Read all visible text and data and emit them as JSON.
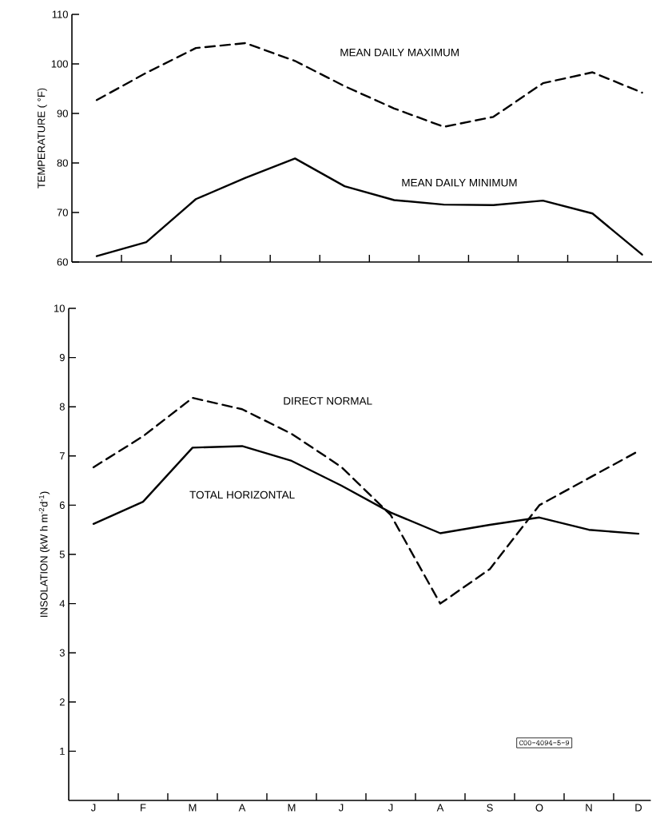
{
  "chart_data": [
    {
      "type": "line",
      "ylabel": "TEMPERATURE ( °F)",
      "ylim": [
        60,
        110
      ],
      "yticks": [
        60,
        70,
        80,
        90,
        100,
        110
      ],
      "categories": [
        null,
        null,
        null,
        null,
        null,
        null,
        null,
        null,
        null,
        null,
        null,
        null
      ],
      "tick_labels": "y",
      "series": [
        {
          "name": "MEAN DAILY MAXIMUM",
          "color": "#000000",
          "line_style": "dashed",
          "values": [
            92.7,
            98.2,
            103.2,
            104.2,
            100.6,
            95.5,
            91.0,
            87.3,
            89.3,
            96.1,
            98.3,
            94.2
          ]
        },
        {
          "name": "MEAN DAILY MINIMUM",
          "color": "#000000",
          "line_style": "solid",
          "values": [
            61.2,
            64.0,
            72.7,
            77.0,
            80.9,
            75.3,
            72.5,
            71.6,
            71.5,
            72.4,
            69.8,
            61.5
          ]
        }
      ]
    },
    {
      "type": "line",
      "ylabel": "INSOLATION  (kW h m$^{-2}$d$^{-1}$)",
      "ylim": [
        0,
        10
      ],
      "yticks": [
        1,
        2,
        3,
        4,
        5,
        6,
        7,
        8,
        9,
        10
      ],
      "categories": [
        "J",
        "F",
        "M",
        "A",
        "M",
        "J",
        "J",
        "A",
        "S",
        "O",
        "N",
        "D"
      ],
      "annotations": [
        "C00-4094-5-9"
      ],
      "series": [
        {
          "name": "DIRECT NORMAL",
          "color": "#000000",
          "line_style": "dashed",
          "values": [
            6.77,
            7.4,
            8.18,
            7.95,
            7.45,
            6.78,
            5.8,
            4.0,
            4.7,
            6.0,
            6.55,
            7.1
          ]
        },
        {
          "name": "TOTAL HORIZONTAL",
          "color": "#000000",
          "line_style": "solid",
          "values": [
            5.62,
            6.07,
            7.17,
            7.2,
            6.9,
            6.4,
            5.85,
            5.43,
            5.6,
            5.75,
            5.5,
            5.42
          ]
        }
      ]
    }
  ]
}
